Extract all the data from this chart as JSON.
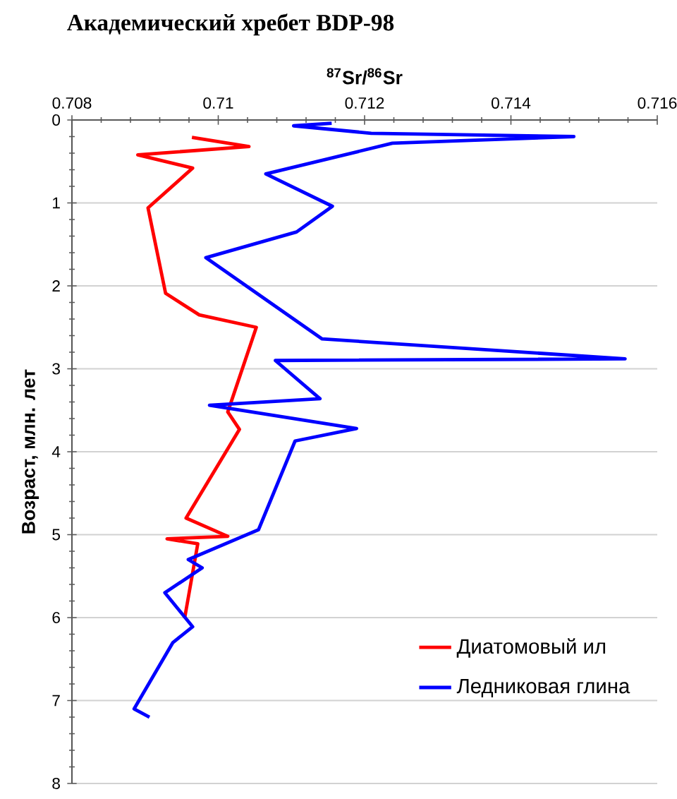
{
  "chart_data": {
    "type": "line",
    "title": "Академический хребет BDP-98",
    "xlabel": "$^{87}$Sr/$^{86}$Sr",
    "ylabel": "Возраст, млн. лет",
    "xlim": [
      0.708,
      0.716
    ],
    "xticks": [
      0.708,
      0.71,
      0.712,
      0.714,
      0.716
    ],
    "ylim": [
      8,
      0
    ],
    "yticks": [
      0,
      1,
      2,
      3,
      4,
      5,
      6,
      7,
      8
    ],
    "grid": "y",
    "legend": "bottom right",
    "series": [
      {
        "name": "Диатомовый ил",
        "color": "#ff0000",
        "x": [
          0.70964,
          0.71042,
          0.7089,
          0.70965,
          0.70904,
          0.70928,
          0.70974,
          0.71052,
          0.71013,
          0.71029,
          0.70956,
          0.71013,
          0.7093,
          0.70972,
          0.70954
        ],
        "values": [
          0.21,
          0.32,
          0.42,
          0.58,
          1.06,
          2.09,
          2.35,
          2.5,
          3.52,
          3.73,
          4.8,
          5.02,
          5.05,
          5.11,
          6.01
        ]
      },
      {
        "name": "Ледниковая глина",
        "color": "#0000ff",
        "x": [
          0.71155,
          0.71103,
          0.71209,
          0.71486,
          0.71238,
          0.71065,
          0.71156,
          0.71107,
          0.70983,
          0.71142,
          0.71556,
          0.71078,
          0.71139,
          0.70988,
          0.71189,
          0.71105,
          0.71055,
          0.70959,
          0.70978,
          0.70927,
          0.70965,
          0.70938,
          0.70885,
          0.70906
        ],
        "values": [
          0.04,
          0.07,
          0.16,
          0.2,
          0.28,
          0.65,
          1.04,
          1.35,
          1.66,
          2.64,
          2.88,
          2.9,
          3.36,
          3.44,
          3.72,
          3.87,
          4.94,
          5.3,
          5.4,
          5.7,
          6.11,
          6.3,
          7.1,
          7.2
        ]
      }
    ]
  }
}
